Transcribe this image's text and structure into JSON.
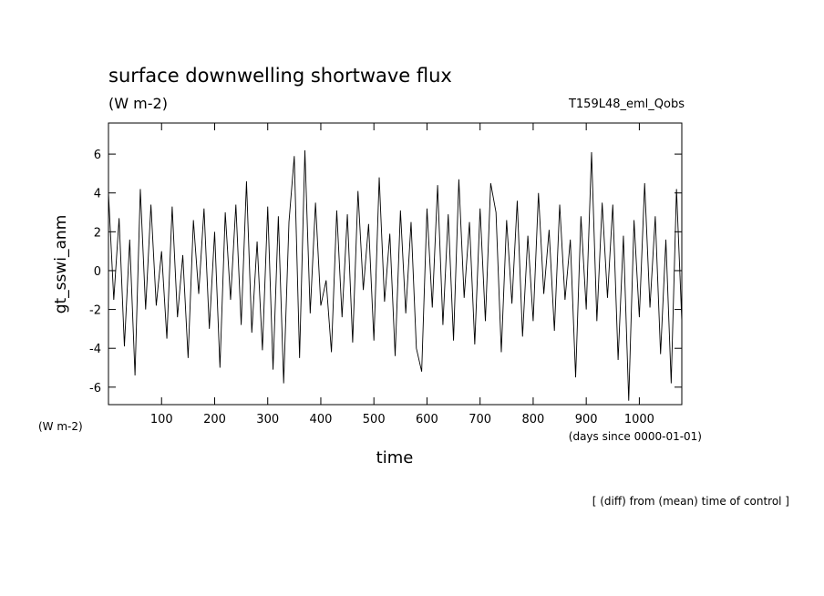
{
  "chart_data": {
    "type": "line",
    "title": "surface downwelling shortwave flux",
    "units": "(W m-2)",
    "run_label": "T159L48_eml_Qobs",
    "y_label": "gt_sswi_anm",
    "y_units": "(W m-2)",
    "x_label": "time",
    "x_units": "(days since 0000-01-01)",
    "footnote": "[ (diff) from (mean) time of control ]",
    "color": "#000000",
    "xlim": [
      0,
      1080
    ],
    "ylim": [
      -6.9,
      7.6
    ],
    "xticks": [
      100,
      200,
      300,
      400,
      500,
      600,
      700,
      800,
      900,
      1000
    ],
    "yticks": [
      -6,
      -4,
      -2,
      0,
      2,
      4,
      6
    ],
    "x": [
      0,
      10,
      20,
      30,
      40,
      50,
      60,
      70,
      80,
      90,
      100,
      110,
      120,
      130,
      140,
      150,
      160,
      170,
      180,
      190,
      200,
      210,
      220,
      230,
      240,
      250,
      260,
      270,
      280,
      290,
      300,
      310,
      320,
      330,
      340,
      350,
      360,
      370,
      380,
      390,
      400,
      410,
      420,
      430,
      440,
      450,
      460,
      470,
      480,
      490,
      500,
      510,
      520,
      530,
      540,
      550,
      560,
      570,
      580,
      590,
      600,
      610,
      620,
      630,
      640,
      650,
      660,
      670,
      680,
      690,
      700,
      710,
      720,
      730,
      740,
      750,
      760,
      770,
      780,
      790,
      800,
      810,
      820,
      830,
      840,
      850,
      860,
      870,
      880,
      890,
      900,
      910,
      920,
      930,
      940,
      950,
      960,
      970,
      980,
      990,
      1000,
      1010,
      1020,
      1030,
      1040,
      1050,
      1060,
      1070,
      1080
    ],
    "values": [
      4.0,
      -1.5,
      2.7,
      -3.9,
      1.6,
      -5.4,
      4.2,
      -2.0,
      3.4,
      -1.8,
      1.0,
      -3.5,
      3.3,
      -2.4,
      0.8,
      -4.5,
      2.6,
      -1.2,
      3.2,
      -3.0,
      2.0,
      -5.0,
      3.0,
      -1.5,
      3.4,
      -2.8,
      4.6,
      -3.2,
      1.5,
      -4.1,
      3.3,
      -5.1,
      2.8,
      -5.8,
      2.5,
      5.9,
      -4.5,
      6.2,
      -2.2,
      3.5,
      -1.8,
      -0.5,
      -4.2,
      3.1,
      -2.4,
      2.9,
      -3.7,
      4.1,
      -1.0,
      2.4,
      -3.6,
      4.8,
      -1.6,
      1.9,
      -4.4,
      3.1,
      -2.2,
      2.5,
      -4.0,
      -5.2,
      3.2,
      -1.9,
      4.4,
      -2.8,
      2.9,
      -3.6,
      4.7,
      -1.4,
      2.5,
      -3.8,
      3.2,
      -2.6,
      4.5,
      3.0,
      -4.2,
      2.6,
      -1.7,
      3.6,
      -3.4,
      1.8,
      -2.6,
      4.0,
      -1.2,
      2.1,
      -3.1,
      3.4,
      -1.5,
      1.6,
      -5.5,
      2.8,
      -2.0,
      6.1,
      -2.6,
      3.5,
      -1.4,
      3.4,
      -4.6,
      1.8,
      -6.7,
      2.6,
      -2.4,
      4.5,
      -1.9,
      2.8,
      -4.3,
      1.6,
      -5.8,
      4.2,
      -2.6
    ]
  }
}
